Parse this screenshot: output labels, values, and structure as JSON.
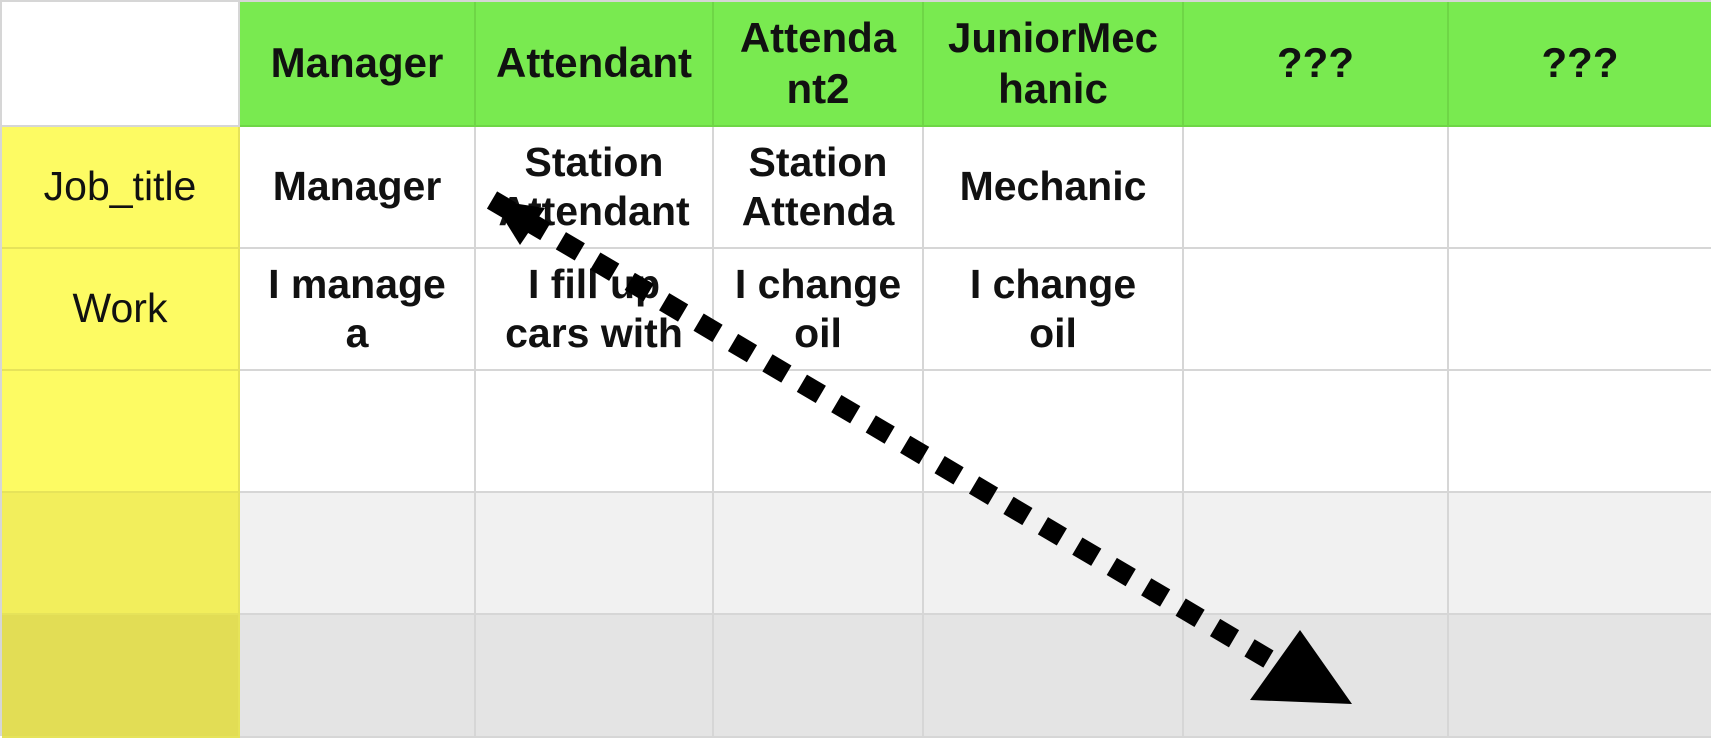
{
  "headers": [
    "",
    "Manager",
    "Attendant",
    "Attenda\nnt2",
    "JuniorMec\nhanic",
    "???",
    "???"
  ],
  "rows": [
    {
      "label": "Job_title",
      "cells": [
        "Manager",
        "Station\nAttendant",
        "Station\nAttenda",
        "Mechanic",
        "",
        ""
      ]
    },
    {
      "label": "Work",
      "cells": [
        "I manage\na",
        "I fill up\ncars with",
        "I change\noil",
        "I change\noil",
        "",
        ""
      ]
    },
    {
      "label": "",
      "cells": [
        "",
        "",
        "",
        "",
        "",
        ""
      ]
    },
    {
      "label": "",
      "cells": [
        "",
        "",
        "",
        "",
        "",
        ""
      ]
    },
    {
      "label": "",
      "cells": [
        "",
        "",
        "",
        "",
        "",
        ""
      ]
    }
  ],
  "colors": {
    "header_bg": "#79ea50",
    "row_header_bg": "#fdfb63",
    "grid_line": "#d6d6d6",
    "arrow": "#000000"
  },
  "annotation": {
    "type": "dotted-arrow",
    "direction": "down-right"
  }
}
